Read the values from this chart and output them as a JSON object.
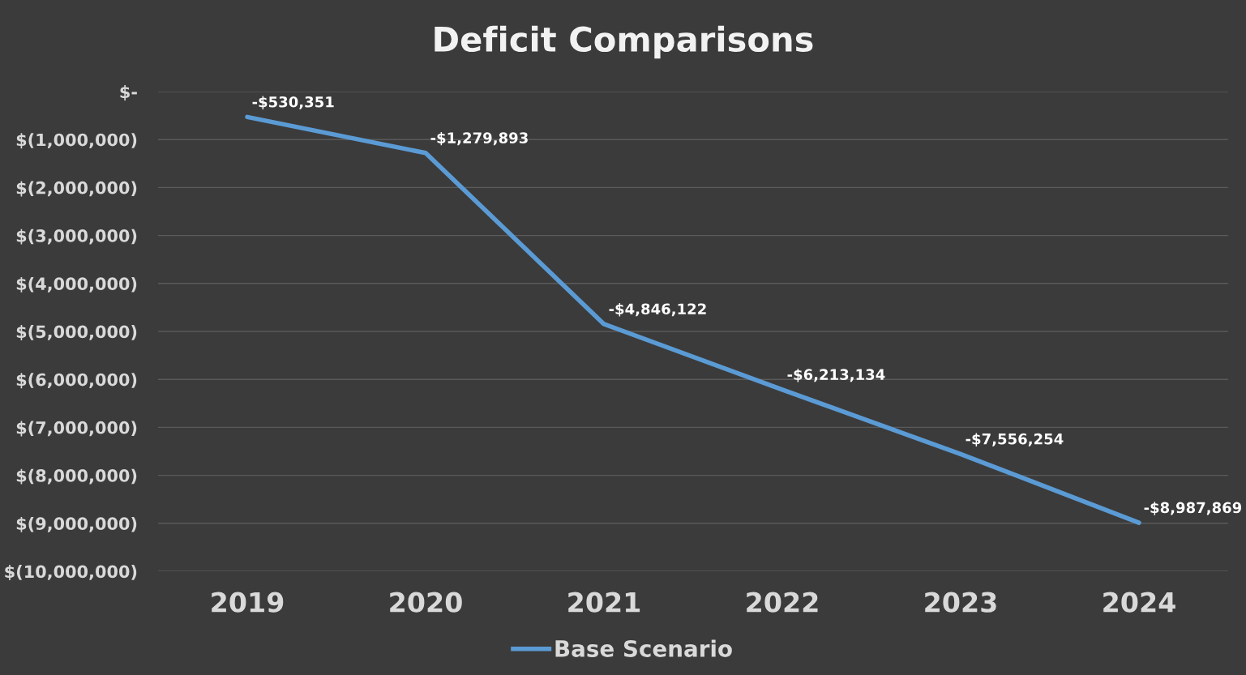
{
  "chart_data": {
    "type": "line",
    "title": "Deficit Comparisons",
    "categories": [
      "2019",
      "2020",
      "2021",
      "2022",
      "2023",
      "2024"
    ],
    "series": [
      {
        "name": "Base Scenario",
        "color": "#5b9bd5",
        "values": [
          -530351,
          -1279893,
          -4846122,
          -6213134,
          -7556254,
          -8987869
        ],
        "value_labels": [
          "-$530,351",
          "-$1,279,893",
          "-$4,846,122",
          "-$6,213,134",
          "-$7,556,254",
          "-$8,987,869"
        ]
      }
    ],
    "ylim": [
      -10000000,
      0
    ],
    "yticks": [
      {
        "value": 0,
        "label": "$-"
      },
      {
        "value": -1000000,
        "label": "$(1,000,000)"
      },
      {
        "value": -2000000,
        "label": "$(2,000,000)"
      },
      {
        "value": -3000000,
        "label": "$(3,000,000)"
      },
      {
        "value": -4000000,
        "label": "$(4,000,000)"
      },
      {
        "value": -5000000,
        "label": "$(5,000,000)"
      },
      {
        "value": -6000000,
        "label": "$(6,000,000)"
      },
      {
        "value": -7000000,
        "label": "$(7,000,000)"
      },
      {
        "value": -8000000,
        "label": "$(8,000,000)"
      },
      {
        "value": -9000000,
        "label": "$(9,000,000)"
      },
      {
        "value": -10000000,
        "label": "$(10,000,000)"
      }
    ],
    "grid": "y",
    "legend": "bottom",
    "marker": "none",
    "line_style": "solid"
  }
}
